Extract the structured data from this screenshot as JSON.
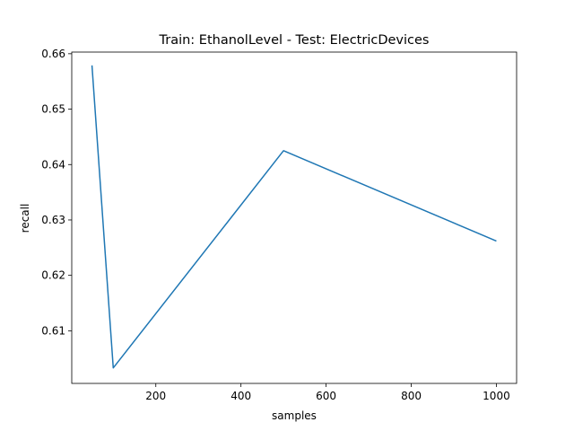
{
  "chart_data": {
    "type": "line",
    "title": "Train: EthanolLevel - Test: ElectricDevices",
    "xlabel": "samples",
    "ylabel": "recall",
    "xlim": [
      2.5,
      1047.5
    ],
    "ylim": [
      0.6005,
      0.6603
    ],
    "xticks": [
      200,
      400,
      600,
      800,
      1000
    ],
    "xtick_labels": [
      "200",
      "400",
      "600",
      "800",
      "1000"
    ],
    "yticks": [
      0.61,
      0.62,
      0.63,
      0.64,
      0.65,
      0.66
    ],
    "ytick_labels": [
      "0.61",
      "0.62",
      "0.63",
      "0.64",
      "0.65",
      "0.66"
    ],
    "grid": false,
    "legend": false,
    "series": [
      {
        "color": "#1f77b4",
        "x": [
          50,
          100,
          500,
          1000
        ],
        "y": [
          0.6579,
          0.6033,
          0.6425,
          0.6262
        ]
      }
    ]
  }
}
